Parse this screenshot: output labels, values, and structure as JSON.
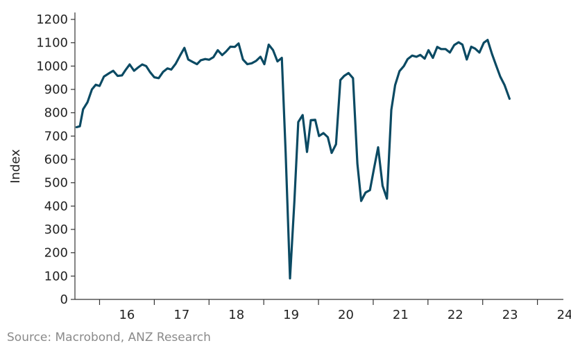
{
  "source_note": "Source: Macrobond, ANZ Research",
  "colors": {
    "line": "#0b4a63",
    "axis": "#333333",
    "text": "#222222",
    "source": "#8a8a8a"
  },
  "chart_data": {
    "type": "line",
    "title": "",
    "xlabel": "",
    "ylabel": "Index",
    "grid": false,
    "legend": "none",
    "ylim": [
      0,
      1200
    ],
    "yticks": [
      0,
      100,
      200,
      300,
      400,
      500,
      600,
      700,
      800,
      900,
      1000,
      1100,
      1200
    ],
    "xlim": [
      2015.55,
      2024.55
    ],
    "xticks": [
      {
        "label": "16",
        "year": 2016
      },
      {
        "label": "17",
        "year": 2017
      },
      {
        "label": "18",
        "year": 2018
      },
      {
        "label": "19",
        "year": 2019
      },
      {
        "label": "20",
        "year": 2020
      },
      {
        "label": "21",
        "year": 2021
      },
      {
        "label": "22",
        "year": 2022
      },
      {
        "label": "23",
        "year": 2023
      },
      {
        "label": "24",
        "year": 2024
      }
    ],
    "series": [
      {
        "points": [
          [
            2015.58,
            738
          ],
          [
            2015.64,
            742
          ],
          [
            2015.7,
            815
          ],
          [
            2015.78,
            845
          ],
          [
            2015.86,
            900
          ],
          [
            2015.93,
            920
          ],
          [
            2016.0,
            915
          ],
          [
            2016.08,
            955
          ],
          [
            2016.18,
            970
          ],
          [
            2016.25,
            980
          ],
          [
            2016.33,
            958
          ],
          [
            2016.41,
            960
          ],
          [
            2016.48,
            985
          ],
          [
            2016.55,
            1007
          ],
          [
            2016.63,
            980
          ],
          [
            2016.71,
            995
          ],
          [
            2016.78,
            1007
          ],
          [
            2016.85,
            1000
          ],
          [
            2016.92,
            975
          ],
          [
            2017.0,
            952
          ],
          [
            2017.08,
            948
          ],
          [
            2017.16,
            975
          ],
          [
            2017.24,
            990
          ],
          [
            2017.31,
            985
          ],
          [
            2017.39,
            1010
          ],
          [
            2017.47,
            1045
          ],
          [
            2017.55,
            1078
          ],
          [
            2017.62,
            1028
          ],
          [
            2017.7,
            1018
          ],
          [
            2017.78,
            1008
          ],
          [
            2017.85,
            1025
          ],
          [
            2017.93,
            1030
          ],
          [
            2018.0,
            1027
          ],
          [
            2018.08,
            1038
          ],
          [
            2018.16,
            1068
          ],
          [
            2018.24,
            1047
          ],
          [
            2018.31,
            1062
          ],
          [
            2018.39,
            1083
          ],
          [
            2018.47,
            1082
          ],
          [
            2018.54,
            1097
          ],
          [
            2018.62,
            1028
          ],
          [
            2018.7,
            1008
          ],
          [
            2018.78,
            1012
          ],
          [
            2018.86,
            1022
          ],
          [
            2018.94,
            1040
          ],
          [
            2019.01,
            1008
          ],
          [
            2019.09,
            1092
          ],
          [
            2019.17,
            1068
          ],
          [
            2019.25,
            1020
          ],
          [
            2019.33,
            1035
          ],
          [
            2019.4,
            630
          ],
          [
            2019.48,
            90
          ],
          [
            2019.56,
            420
          ],
          [
            2019.63,
            760
          ],
          [
            2019.71,
            790
          ],
          [
            2019.79,
            632
          ],
          [
            2019.86,
            768
          ],
          [
            2019.94,
            770
          ],
          [
            2020.01,
            700
          ],
          [
            2020.09,
            713
          ],
          [
            2020.17,
            695
          ],
          [
            2020.24,
            628
          ],
          [
            2020.32,
            665
          ],
          [
            2020.4,
            940
          ],
          [
            2020.47,
            958
          ],
          [
            2020.55,
            970
          ],
          [
            2020.63,
            948
          ],
          [
            2020.71,
            582
          ],
          [
            2020.78,
            422
          ],
          [
            2020.86,
            458
          ],
          [
            2020.94,
            468
          ],
          [
            2021.01,
            555
          ],
          [
            2021.09,
            652
          ],
          [
            2021.17,
            487
          ],
          [
            2021.25,
            432
          ],
          [
            2021.33,
            812
          ],
          [
            2021.4,
            918
          ],
          [
            2021.48,
            978
          ],
          [
            2021.56,
            1000
          ],
          [
            2021.63,
            1030
          ],
          [
            2021.71,
            1045
          ],
          [
            2021.79,
            1040
          ],
          [
            2021.86,
            1048
          ],
          [
            2021.94,
            1032
          ],
          [
            2022.01,
            1068
          ],
          [
            2022.09,
            1035
          ],
          [
            2022.17,
            1082
          ],
          [
            2022.24,
            1073
          ],
          [
            2022.32,
            1073
          ],
          [
            2022.4,
            1058
          ],
          [
            2022.48,
            1090
          ],
          [
            2022.56,
            1102
          ],
          [
            2022.63,
            1092
          ],
          [
            2022.71,
            1028
          ],
          [
            2022.79,
            1083
          ],
          [
            2022.86,
            1075
          ],
          [
            2022.94,
            1058
          ],
          [
            2023.02,
            1100
          ],
          [
            2023.09,
            1112
          ],
          [
            2023.17,
            1052
          ],
          [
            2023.25,
            1000
          ],
          [
            2023.32,
            955
          ],
          [
            2023.4,
            918
          ],
          [
            2023.49,
            860
          ]
        ]
      }
    ]
  }
}
